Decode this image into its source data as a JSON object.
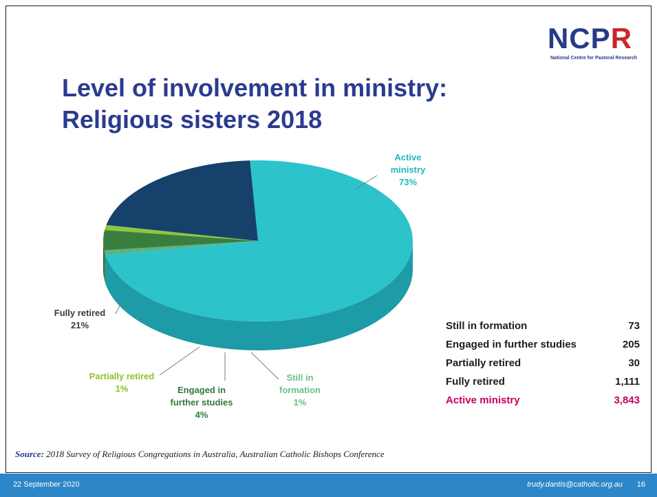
{
  "slide": {
    "title_line1": "Level of involvement in ministry:",
    "title_line2": "Religious sisters 2018",
    "logo_text_main": "NCP",
    "logo_text_r": "R",
    "logo_subtitle": "National Centre for Pastoral Research",
    "source_label": "Source:",
    "source_text": "2018 Survey of Religious Congregations in Australia, Australian Catholic Bishops Conference",
    "footer_date": "22 September 2020",
    "footer_email": "trudy.dantis@catholic.org.au",
    "page_number": "16"
  },
  "chart_data": {
    "type": "pie",
    "title": "Level of involvement in ministry: Religious sisters 2018",
    "slices": [
      {
        "name": "Active ministry",
        "percent": 73,
        "label_line1": "Active",
        "label_line2": "ministry",
        "label_pct": "73%",
        "color": "#2cc3cb",
        "side": "#1d9ba6",
        "label_color": "#25b5c1"
      },
      {
        "name": "Still in formation",
        "percent": 1,
        "label_line1": "Still in",
        "label_line2": "formation",
        "label_pct": "1%",
        "color": "#5ab384",
        "side": "#3f8f66",
        "label_color": "#6cbf85"
      },
      {
        "name": "Engaged in further studies",
        "percent": 4,
        "label_line1": "Engaged in",
        "label_line2": "further studies",
        "label_pct": "4%",
        "color": "#3a7e3f",
        "side": "#2c6130",
        "label_color": "#2f7a3a"
      },
      {
        "name": "Partially retired",
        "percent": 1,
        "label_line1": "Partially retired",
        "label_line2": "",
        "label_pct": "1%",
        "color": "#8cc63f",
        "side": "#6f9e30",
        "label_color": "#8fbf2d"
      },
      {
        "name": "Fully retired",
        "percent": 21,
        "label_line1": "Fully retired",
        "label_line2": "",
        "label_pct": "21%",
        "color": "#15416a",
        "side": "#0e2f4e",
        "label_color": "#3a3a3a"
      }
    ],
    "table": [
      {
        "label": "Still in formation",
        "value": "73"
      },
      {
        "label": "Engaged in further studies",
        "value": "205"
      },
      {
        "label": "Partially retired",
        "value": "30"
      },
      {
        "label": "Fully retired",
        "value": "1,111"
      },
      {
        "label": "Active ministry",
        "value": "3,843",
        "highlight": true
      }
    ]
  }
}
